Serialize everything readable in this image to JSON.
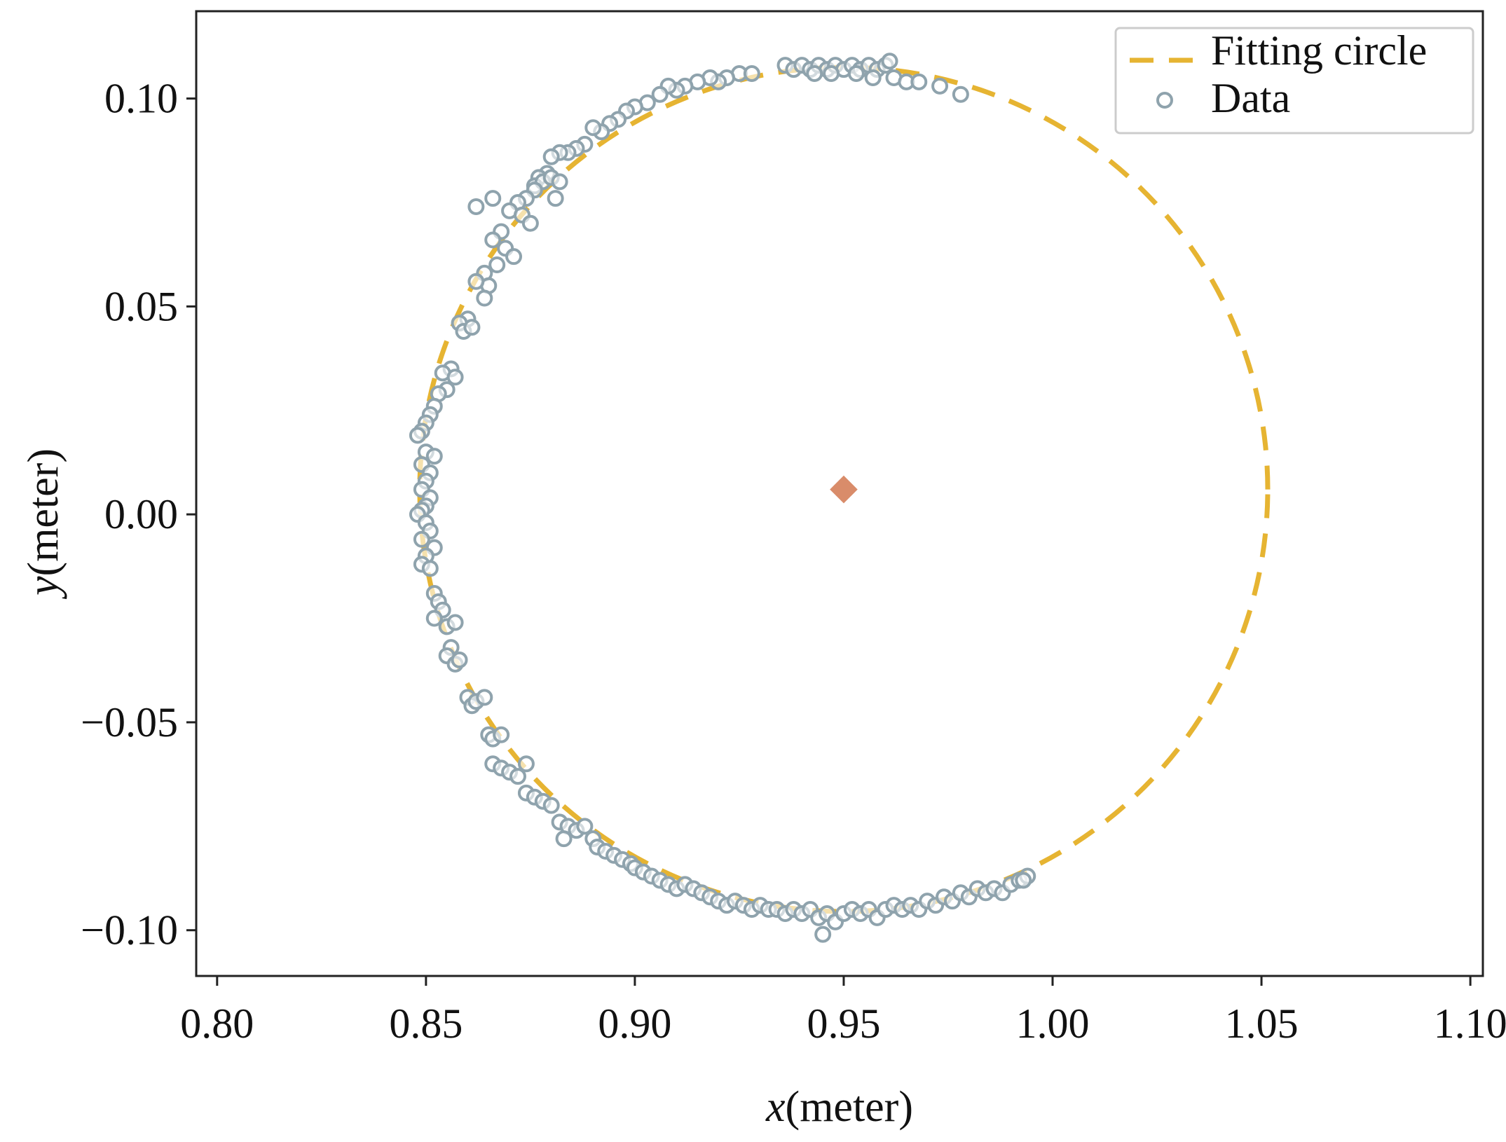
{
  "chart_data": {
    "type": "scatter",
    "title": "",
    "xlabel": {
      "var": "x",
      "unit": "(meter)"
    },
    "ylabel": {
      "var": "y",
      "unit": "(meter)"
    },
    "xlim": [
      0.795,
      1.103
    ],
    "ylim": [
      -0.111,
      0.121
    ],
    "xticks": [
      0.8,
      0.85,
      0.9,
      0.95,
      1.0,
      1.05,
      1.1
    ],
    "xtick_labels": [
      "0.80",
      "0.85",
      "0.90",
      "0.95",
      "1.00",
      "1.05",
      "1.10"
    ],
    "yticks": [
      0.1,
      0.05,
      0.0,
      -0.05,
      -0.1
    ],
    "ytick_labels": [
      "0.10",
      "0.05",
      "0.00",
      "−0.05",
      "−0.10"
    ],
    "grid": false,
    "legend": {
      "placement": "top-right",
      "entries": [
        {
          "label": "Fitting circle",
          "style": "dashed-line",
          "color": "#E6B432"
        },
        {
          "label": "Data",
          "style": "open-circle",
          "color": "#8FA3AD"
        }
      ]
    },
    "fitting_circle": {
      "cx": 0.95,
      "cy": 0.006,
      "r": 0.1015,
      "color": "#E6B432"
    },
    "center_marker": {
      "x": 0.95,
      "y": 0.006,
      "shape": "diamond",
      "color": "#D98C6A"
    },
    "data_series": {
      "name": "Data",
      "color": "#8FA3AD",
      "points": [
        [
          0.936,
          0.108
        ],
        [
          0.938,
          0.107
        ],
        [
          0.94,
          0.108
        ],
        [
          0.942,
          0.107
        ],
        [
          0.944,
          0.108
        ],
        [
          0.946,
          0.107
        ],
        [
          0.948,
          0.108
        ],
        [
          0.95,
          0.107
        ],
        [
          0.952,
          0.108
        ],
        [
          0.954,
          0.107
        ],
        [
          0.956,
          0.108
        ],
        [
          0.958,
          0.107
        ],
        [
          0.96,
          0.108
        ],
        [
          0.961,
          0.109
        ],
        [
          0.943,
          0.106
        ],
        [
          0.947,
          0.106
        ],
        [
          0.953,
          0.106
        ],
        [
          0.957,
          0.105
        ],
        [
          0.962,
          0.105
        ],
        [
          0.965,
          0.104
        ],
        [
          0.968,
          0.104
        ],
        [
          0.973,
          0.103
        ],
        [
          0.978,
          0.101
        ],
        [
          0.925,
          0.106
        ],
        [
          0.928,
          0.106
        ],
        [
          0.922,
          0.105
        ],
        [
          0.92,
          0.104
        ],
        [
          0.918,
          0.105
        ],
        [
          0.915,
          0.104
        ],
        [
          0.912,
          0.103
        ],
        [
          0.91,
          0.102
        ],
        [
          0.908,
          0.103
        ],
        [
          0.906,
          0.101
        ],
        [
          0.903,
          0.099
        ],
        [
          0.9,
          0.098
        ],
        [
          0.898,
          0.097
        ],
        [
          0.896,
          0.095
        ],
        [
          0.894,
          0.094
        ],
        [
          0.892,
          0.092
        ],
        [
          0.89,
          0.093
        ],
        [
          0.888,
          0.089
        ],
        [
          0.886,
          0.088
        ],
        [
          0.884,
          0.087
        ],
        [
          0.882,
          0.087
        ],
        [
          0.88,
          0.086
        ],
        [
          0.879,
          0.082
        ],
        [
          0.877,
          0.081
        ],
        [
          0.876,
          0.079
        ],
        [
          0.878,
          0.08
        ],
        [
          0.88,
          0.081
        ],
        [
          0.882,
          0.08
        ],
        [
          0.881,
          0.076
        ],
        [
          0.876,
          0.078
        ],
        [
          0.874,
          0.076
        ],
        [
          0.872,
          0.075
        ],
        [
          0.87,
          0.073
        ],
        [
          0.873,
          0.072
        ],
        [
          0.875,
          0.07
        ],
        [
          0.866,
          0.076
        ],
        [
          0.862,
          0.074
        ],
        [
          0.868,
          0.068
        ],
        [
          0.866,
          0.066
        ],
        [
          0.869,
          0.064
        ],
        [
          0.871,
          0.062
        ],
        [
          0.867,
          0.06
        ],
        [
          0.864,
          0.058
        ],
        [
          0.865,
          0.055
        ],
        [
          0.862,
          0.056
        ],
        [
          0.864,
          0.052
        ],
        [
          0.86,
          0.047
        ],
        [
          0.858,
          0.046
        ],
        [
          0.859,
          0.044
        ],
        [
          0.861,
          0.045
        ],
        [
          0.856,
          0.035
        ],
        [
          0.854,
          0.034
        ],
        [
          0.857,
          0.033
        ],
        [
          0.855,
          0.03
        ],
        [
          0.853,
          0.029
        ],
        [
          0.852,
          0.026
        ],
        [
          0.851,
          0.024
        ],
        [
          0.85,
          0.022
        ],
        [
          0.849,
          0.02
        ],
        [
          0.848,
          0.019
        ],
        [
          0.85,
          0.015
        ],
        [
          0.852,
          0.014
        ],
        [
          0.849,
          0.012
        ],
        [
          0.851,
          0.01
        ],
        [
          0.85,
          0.008
        ],
        [
          0.849,
          0.006
        ],
        [
          0.851,
          0.004
        ],
        [
          0.85,
          0.002
        ],
        [
          0.849,
          0.001
        ],
        [
          0.848,
          0.0
        ],
        [
          0.85,
          -0.002
        ],
        [
          0.851,
          -0.004
        ],
        [
          0.849,
          -0.006
        ],
        [
          0.852,
          -0.008
        ],
        [
          0.85,
          -0.01
        ],
        [
          0.849,
          -0.012
        ],
        [
          0.851,
          -0.013
        ],
        [
          0.852,
          -0.019
        ],
        [
          0.853,
          -0.021
        ],
        [
          0.854,
          -0.023
        ],
        [
          0.852,
          -0.025
        ],
        [
          0.855,
          -0.027
        ],
        [
          0.857,
          -0.026
        ],
        [
          0.856,
          -0.032
        ],
        [
          0.855,
          -0.034
        ],
        [
          0.857,
          -0.036
        ],
        [
          0.858,
          -0.035
        ],
        [
          0.86,
          -0.044
        ],
        [
          0.861,
          -0.046
        ],
        [
          0.862,
          -0.045
        ],
        [
          0.864,
          -0.044
        ],
        [
          0.865,
          -0.053
        ],
        [
          0.866,
          -0.054
        ],
        [
          0.868,
          -0.053
        ],
        [
          0.866,
          -0.06
        ],
        [
          0.868,
          -0.061
        ],
        [
          0.87,
          -0.062
        ],
        [
          0.872,
          -0.063
        ],
        [
          0.874,
          -0.06
        ],
        [
          0.874,
          -0.067
        ],
        [
          0.876,
          -0.068
        ],
        [
          0.878,
          -0.069
        ],
        [
          0.88,
          -0.07
        ],
        [
          0.882,
          -0.074
        ],
        [
          0.884,
          -0.075
        ],
        [
          0.883,
          -0.078
        ],
        [
          0.886,
          -0.076
        ],
        [
          0.888,
          -0.075
        ],
        [
          0.89,
          -0.078
        ],
        [
          0.891,
          -0.08
        ],
        [
          0.893,
          -0.081
        ],
        [
          0.895,
          -0.082
        ],
        [
          0.897,
          -0.083
        ],
        [
          0.899,
          -0.084
        ],
        [
          0.9,
          -0.085
        ],
        [
          0.902,
          -0.086
        ],
        [
          0.904,
          -0.087
        ],
        [
          0.906,
          -0.088
        ],
        [
          0.908,
          -0.089
        ],
        [
          0.91,
          -0.09
        ],
        [
          0.912,
          -0.089
        ],
        [
          0.914,
          -0.09
        ],
        [
          0.916,
          -0.091
        ],
        [
          0.918,
          -0.092
        ],
        [
          0.92,
          -0.093
        ],
        [
          0.922,
          -0.094
        ],
        [
          0.924,
          -0.093
        ],
        [
          0.926,
          -0.094
        ],
        [
          0.928,
          -0.095
        ],
        [
          0.93,
          -0.094
        ],
        [
          0.932,
          -0.095
        ],
        [
          0.934,
          -0.095
        ],
        [
          0.936,
          -0.096
        ],
        [
          0.938,
          -0.095
        ],
        [
          0.94,
          -0.096
        ],
        [
          0.942,
          -0.095
        ],
        [
          0.944,
          -0.097
        ],
        [
          0.946,
          -0.096
        ],
        [
          0.945,
          -0.101
        ],
        [
          0.948,
          -0.098
        ],
        [
          0.95,
          -0.096
        ],
        [
          0.952,
          -0.095
        ],
        [
          0.954,
          -0.096
        ],
        [
          0.956,
          -0.095
        ],
        [
          0.958,
          -0.097
        ],
        [
          0.96,
          -0.095
        ],
        [
          0.962,
          -0.094
        ],
        [
          0.964,
          -0.095
        ],
        [
          0.966,
          -0.094
        ],
        [
          0.968,
          -0.095
        ],
        [
          0.97,
          -0.093
        ],
        [
          0.972,
          -0.094
        ],
        [
          0.974,
          -0.092
        ],
        [
          0.976,
          -0.093
        ],
        [
          0.978,
          -0.091
        ],
        [
          0.98,
          -0.092
        ],
        [
          0.982,
          -0.09
        ],
        [
          0.984,
          -0.091
        ],
        [
          0.986,
          -0.09
        ],
        [
          0.988,
          -0.091
        ],
        [
          0.99,
          -0.089
        ],
        [
          0.992,
          -0.088
        ],
        [
          0.994,
          -0.087
        ],
        [
          0.993,
          -0.088
        ]
      ]
    }
  }
}
